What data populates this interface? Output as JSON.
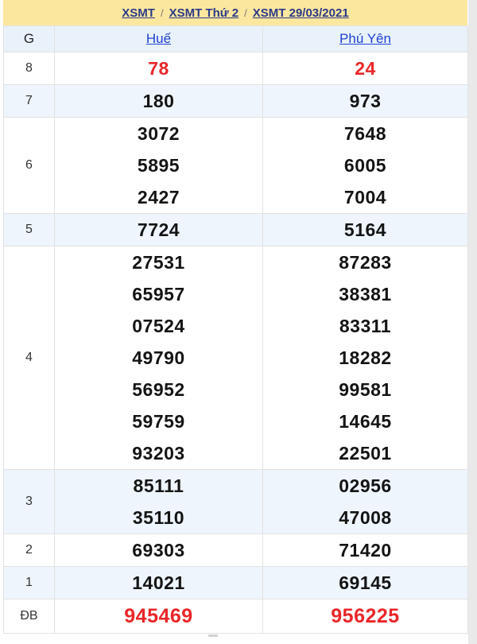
{
  "breadcrumb": {
    "separator": "/",
    "items": [
      "XSMT",
      "XSMT Thứ 2",
      "XSMT 29/03/2021"
    ]
  },
  "table": {
    "g_header": "G",
    "columns": [
      "Huế",
      "Phú Yên"
    ],
    "rows": [
      {
        "g": "8",
        "hue": [
          "78"
        ],
        "phuyen": [
          "24"
        ],
        "shade": false,
        "highlight": true,
        "special": false
      },
      {
        "g": "7",
        "hue": [
          "180"
        ],
        "phuyen": [
          "973"
        ],
        "shade": true,
        "highlight": false,
        "special": false
      },
      {
        "g": "6",
        "hue": [
          "3072",
          "5895",
          "2427"
        ],
        "phuyen": [
          "7648",
          "6005",
          "7004"
        ],
        "shade": false,
        "highlight": false,
        "special": false
      },
      {
        "g": "5",
        "hue": [
          "7724"
        ],
        "phuyen": [
          "5164"
        ],
        "shade": true,
        "highlight": false,
        "special": false
      },
      {
        "g": "4",
        "hue": [
          "27531",
          "65957",
          "07524",
          "49790",
          "56952",
          "59759",
          "93203"
        ],
        "phuyen": [
          "87283",
          "38381",
          "83311",
          "18282",
          "99581",
          "14645",
          "22501"
        ],
        "shade": false,
        "highlight": false,
        "special": false
      },
      {
        "g": "3",
        "hue": [
          "85111",
          "35110"
        ],
        "phuyen": [
          "02956",
          "47008"
        ],
        "shade": true,
        "highlight": false,
        "special": false
      },
      {
        "g": "2",
        "hue": [
          "69303"
        ],
        "phuyen": [
          "71420"
        ],
        "shade": false,
        "highlight": false,
        "special": false
      },
      {
        "g": "1",
        "hue": [
          "14021"
        ],
        "phuyen": [
          "69145"
        ],
        "shade": true,
        "highlight": false,
        "special": false
      },
      {
        "g": "ĐB",
        "hue": [
          "945469"
        ],
        "phuyen": [
          "956225"
        ],
        "shade": false,
        "highlight": true,
        "special": true
      }
    ]
  },
  "colors": {
    "banner_bg": "#fce79f",
    "breadcrumb_link": "#2b3a87",
    "shade_row_bg": "#eef5fc",
    "header_row_bg": "#e9f2fb",
    "column_link": "#1f41d3",
    "highlight_red": "#e92629",
    "number_black": "#141414",
    "border": "#e2e2e2",
    "scroll_track": "#e9e9e9"
  }
}
